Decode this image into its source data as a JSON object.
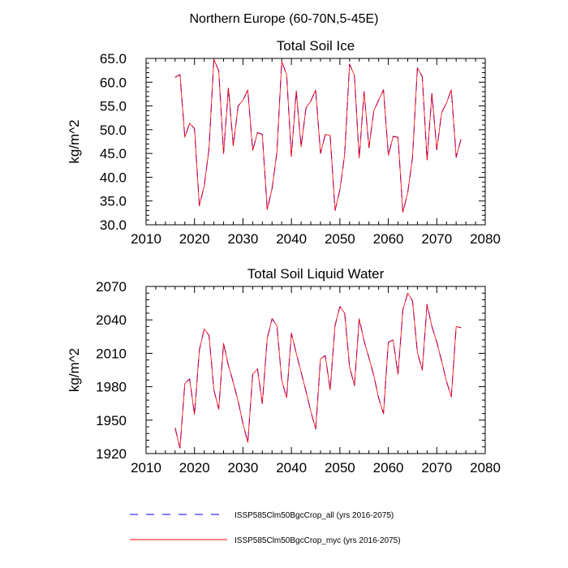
{
  "figure": {
    "title": "Northern Europe (60-70N,5-45E)"
  },
  "legend": {
    "placement": "bottom",
    "entries": [
      {
        "label": "ISSP585Clm50BgcCrop_all (yrs 2016-2075)",
        "color": "#0000ff",
        "dash": "dashed"
      },
      {
        "label": "ISSP585Clm50BgcCrop_myc (yrs 2016-2075)",
        "color": "#ff0000",
        "dash": "solid"
      }
    ]
  },
  "chart_data": [
    {
      "type": "line",
      "title": "Total Soil Ice",
      "xlabel": "",
      "ylabel": "kg/m^2",
      "xlim": [
        2010,
        2080
      ],
      "ylim": [
        30,
        65
      ],
      "xticks": [
        2010,
        2020,
        2030,
        2040,
        2050,
        2060,
        2070,
        2080
      ],
      "yticks": [
        30,
        35,
        40,
        45,
        50,
        55,
        60,
        65
      ],
      "ytick_labels": [
        "30.0",
        "35.0",
        "40.0",
        "45.0",
        "50.0",
        "55.0",
        "60.0",
        "65.0"
      ],
      "grid": false,
      "x": [
        2016,
        2017,
        2018,
        2019,
        2020,
        2021,
        2022,
        2023,
        2024,
        2025,
        2026,
        2027,
        2028,
        2029,
        2030,
        2031,
        2032,
        2033,
        2034,
        2035,
        2036,
        2037,
        2038,
        2039,
        2040,
        2041,
        2042,
        2043,
        2044,
        2045,
        2046,
        2047,
        2048,
        2049,
        2050,
        2051,
        2052,
        2053,
        2054,
        2055,
        2056,
        2057,
        2058,
        2059,
        2060,
        2061,
        2062,
        2063,
        2064,
        2065,
        2066,
        2067,
        2068,
        2069,
        2070,
        2071,
        2072,
        2073,
        2074,
        2075
      ],
      "series": [
        {
          "name": "ISSP585Clm50BgcCrop_all (yrs 2016-2075)",
          "values": [
            61.0,
            61.6,
            48.4,
            51.4,
            50.2,
            34.0,
            38.2,
            46.0,
            64.8,
            62.4,
            45.0,
            58.8,
            46.6,
            55.0,
            56.2,
            58.4,
            45.6,
            49.4,
            49.0,
            33.2,
            37.6,
            45.2,
            64.4,
            61.6,
            44.4,
            58.2,
            46.4,
            54.6,
            56.0,
            58.4,
            45.0,
            49.0,
            48.8,
            33.0,
            37.4,
            44.8,
            63.8,
            61.4,
            44.0,
            58.0,
            46.2,
            54.0,
            56.2,
            58.4,
            44.6,
            48.6,
            48.4,
            32.6,
            36.8,
            44.2,
            63.0,
            61.2,
            43.6,
            57.6,
            45.8,
            53.6,
            55.6,
            58.4,
            44.2,
            48.0
          ]
        },
        {
          "name": "ISSP585Clm50BgcCrop_myc (yrs 2016-2075)",
          "values": [
            61.0,
            61.6,
            48.4,
            51.4,
            50.2,
            34.0,
            38.2,
            46.0,
            64.8,
            62.4,
            45.0,
            58.8,
            46.6,
            55.0,
            56.2,
            58.4,
            45.6,
            49.4,
            49.0,
            33.2,
            37.6,
            45.2,
            64.4,
            61.6,
            44.4,
            58.2,
            46.4,
            54.6,
            56.0,
            58.4,
            45.0,
            49.0,
            48.8,
            33.0,
            37.4,
            44.8,
            63.8,
            61.4,
            44.0,
            58.0,
            46.2,
            54.0,
            56.2,
            58.4,
            44.6,
            48.6,
            48.4,
            32.6,
            36.8,
            44.2,
            63.0,
            61.2,
            43.6,
            57.6,
            45.8,
            53.6,
            55.6,
            58.4,
            44.2,
            48.0
          ]
        }
      ]
    },
    {
      "type": "line",
      "title": "Total Soil Liquid Water",
      "xlabel": "",
      "ylabel": "kg/m^2",
      "xlim": [
        2010,
        2080
      ],
      "ylim": [
        1920,
        2070
      ],
      "xticks": [
        2010,
        2020,
        2030,
        2040,
        2050,
        2060,
        2070,
        2080
      ],
      "yticks": [
        1920,
        1950,
        1980,
        2010,
        2040,
        2070
      ],
      "ytick_labels": [
        "1920",
        "1950",
        "1980",
        "2010",
        "2040",
        "2070"
      ],
      "grid": false,
      "x": [
        2016,
        2017,
        2018,
        2019,
        2020,
        2021,
        2022,
        2023,
        2024,
        2025,
        2026,
        2027,
        2028,
        2029,
        2030,
        2031,
        2032,
        2033,
        2034,
        2035,
        2036,
        2037,
        2038,
        2039,
        2040,
        2041,
        2042,
        2043,
        2044,
        2045,
        2046,
        2047,
        2048,
        2049,
        2050,
        2051,
        2052,
        2053,
        2054,
        2055,
        2056,
        2057,
        2058,
        2059,
        2060,
        2061,
        2062,
        2063,
        2064,
        2065,
        2066,
        2067,
        2068,
        2069,
        2070,
        2071,
        2072,
        2073,
        2074,
        2075
      ],
      "series": [
        {
          "name": "ISSP585Clm50BgcCrop_all (yrs 2016-2075)",
          "values": [
            1943,
            1925,
            1983,
            1987,
            1955,
            2013,
            2032,
            2026,
            1977,
            1960,
            2019,
            1999,
            1984,
            1967,
            1947,
            1930,
            1991,
            1996,
            1965,
            2023,
            2041,
            2035,
            1986,
            1970,
            2028,
            2010,
            1993,
            1976,
            1958,
            1942,
            2005,
            2008,
            1977,
            2035,
            2052,
            2046,
            1998,
            1981,
            2041,
            2021,
            2006,
            1990,
            1970,
            1956,
            2020,
            2022,
            1991,
            2049,
            2064,
            2057,
            2011,
            1995,
            2054,
            2034,
            2020,
            2003,
            1985,
            1971,
            2034,
            2033
          ]
        },
        {
          "name": "ISSP585Clm50BgcCrop_myc (yrs 2016-2075)",
          "values": [
            1943,
            1925,
            1983,
            1987,
            1955,
            2013,
            2032,
            2026,
            1977,
            1960,
            2019,
            1999,
            1984,
            1967,
            1947,
            1930,
            1991,
            1996,
            1965,
            2023,
            2041,
            2035,
            1986,
            1970,
            2028,
            2010,
            1993,
            1976,
            1958,
            1942,
            2005,
            2008,
            1977,
            2035,
            2052,
            2046,
            1998,
            1981,
            2041,
            2021,
            2006,
            1990,
            1970,
            1956,
            2020,
            2022,
            1991,
            2049,
            2064,
            2057,
            2011,
            1995,
            2054,
            2034,
            2020,
            2003,
            1985,
            1971,
            2034,
            2033
          ]
        }
      ]
    }
  ]
}
